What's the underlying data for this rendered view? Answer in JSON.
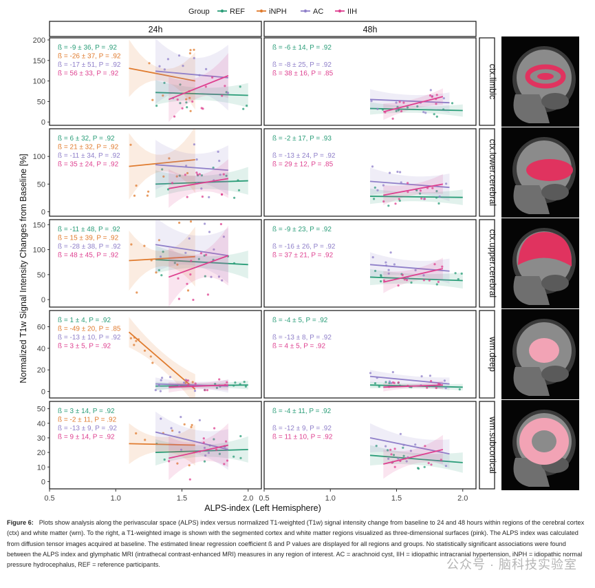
{
  "figure": {
    "legend_title": "Group",
    "x_axis_label": "ALPS-index (Left Hemisphere)",
    "y_axis_label": "Normalized T1w Signal Intensity Changes from Baseline [%]",
    "caption_label": "Figure 6:",
    "caption_text": "Plots show analysis along the perivascular space (ALPS) index versus normalized T1-weighted (T1w) signal intensity change from baseline to 24 and 48 hours within regions of the cerebral cortex (ctx) and white matter (wm). To the right, a T1-weighted image is shown with the segmented cortex and white matter regions visualized as three-dimensional surfaces (pink). The ALPS index was calculated from diffusion tensor images acquired at baseline. The estimated linear regression coefficient ß and P values are displayed for all regions and groups. No statistically significant associations were found between the ALPS index and glymphatic MRI (intrathecal contrast-enhanced MRI) measures in any region of interest. AC = arachnoid cyst, IIH = idiopathic intracranial hypertension, iNPH = idiopathic normal pressure hydrocephalus, REF = reference participants.",
    "watermark": "公众号 · 脑科技实验室",
    "colors": {
      "REF": "#2a9d78",
      "iNPH": "#e07b2e",
      "AC": "#8f7fc9",
      "IIH": "#de3f8f"
    }
  },
  "chart_data": {
    "type": "scatter",
    "groups": [
      "REF",
      "iNPH",
      "AC",
      "IIH"
    ],
    "columns": [
      "24h",
      "48h"
    ],
    "x_ticks": [
      "0.5",
      "1.0",
      "1.5",
      "2.0"
    ],
    "xlim": [
      0.5,
      2.1
    ],
    "rows": [
      {
        "region": "ctx.limbic",
        "ylim": [
          -8,
          205
        ],
        "y_ticks": [
          "0",
          "50",
          "100",
          "150",
          "200"
        ],
        "panels": [
          {
            "stats": [
              "ß = -9 ± 36, P = .92",
              "ß = -26 ± 37, P = .92",
              "ß = -17 ± 51, P = .92",
              "ß = 56 ± 33, P = .92"
            ],
            "lines": {
              "REF": {
                "x": [
                  1.3,
                  2.0
                ],
                "y": [
                  72,
                  65
                ],
                "band": [
                  15,
                  30
                ]
              },
              "iNPH": {
                "x": [
                  1.1,
                  1.6
                ],
                "y": [
                  131,
                  100
                ],
                "band": [
                  15,
                  70
                ]
              },
              "AC": {
                "x": [
                  1.3,
                  1.85
                ],
                "y": [
                  124,
                  108
                ],
                "band": [
                  40,
                  80
                ]
              },
              "IIH": {
                "x": [
                  1.4,
                  1.85
                ],
                "y": [
                  55,
                  113
                ],
                "band": [
                  25,
                  55
                ]
              }
            }
          },
          {
            "stats": [
              "ß = -6 ± 14, P = .92",
              "ß = -8 ± 25, P = .92",
              "ß = 38 ± 16, P = .85"
            ],
            "lines": {
              "REF": {
                "x": [
                  1.3,
                  2.0
                ],
                "y": [
                  33,
                  28
                ],
                "band": [
                  8,
                  15
                ]
              },
              "AC": {
                "x": [
                  1.3,
                  1.9
                ],
                "y": [
                  55,
                  47
                ],
                "band": [
                  15,
                  25
                ]
              },
              "IIH": {
                "x": [
                  1.4,
                  1.85
                ],
                "y": [
                  25,
                  62
                ],
                "band": [
                  12,
                  20
                ]
              }
            }
          }
        ]
      },
      {
        "region": "ctx.lower.cerebral",
        "ylim": [
          -8,
          150
        ],
        "y_ticks": [
          "0",
          "50",
          "100"
        ],
        "panels": [
          {
            "stats": [
              "ß = 6 ± 32, P = .92",
              "ß = 21 ± 32, P = .92",
              "ß = -11 ± 34, P = .92",
              "ß = 35 ± 24, P = .92"
            ],
            "lines": {
              "REF": {
                "x": [
                  1.3,
                  2.0
                ],
                "y": [
                  50,
                  56
                ],
                "band": [
                  12,
                  25
                ]
              },
              "iNPH": {
                "x": [
                  1.1,
                  1.6
                ],
                "y": [
                  82,
                  94
                ],
                "band": [
                  15,
                  60
                ]
              },
              "AC": {
                "x": [
                  1.3,
                  1.85
                ],
                "y": [
                  85,
                  75
                ],
                "band": [
                  25,
                  45
                ]
              },
              "IIH": {
                "x": [
                  1.4,
                  1.85
                ],
                "y": [
                  42,
                  60
                ],
                "band": [
                  15,
                  35
                ]
              }
            }
          },
          {
            "stats": [
              "ß = -2 ± 17, P = .93",
              "ß = -13 ± 24, P = .92",
              "ß = 29 ± 12, P = .85"
            ],
            "lines": {
              "REF": {
                "x": [
                  1.3,
                  2.0
                ],
                "y": [
                  28,
                  26
                ],
                "band": [
                  8,
                  14
                ]
              },
              "AC": {
                "x": [
                  1.3,
                  1.9
                ],
                "y": [
                  55,
                  44
                ],
                "band": [
                  15,
                  25
                ]
              },
              "IIH": {
                "x": [
                  1.4,
                  1.85
                ],
                "y": [
                  30,
                  50
                ],
                "band": [
                  10,
                  18
                ]
              }
            }
          }
        ]
      },
      {
        "region": "ctx.upper.cerebral",
        "ylim": [
          -15,
          160
        ],
        "y_ticks": [
          "0",
          "50",
          "100",
          "150"
        ],
        "panels": [
          {
            "stats": [
              "ß = -11 ± 48, P = .92",
              "ß = 15 ± 39, P = .92",
              "ß = -28 ± 38, P = .92",
              "ß = 48 ± 45, P = .92"
            ],
            "lines": {
              "REF": {
                "x": [
                  1.3,
                  2.0
                ],
                "y": [
                  80,
                  70
                ],
                "band": [
                  12,
                  28
                ]
              },
              "iNPH": {
                "x": [
                  1.1,
                  1.6
                ],
                "y": [
                  78,
                  86
                ],
                "band": [
                  15,
                  60
                ]
              },
              "AC": {
                "x": [
                  1.3,
                  1.85
                ],
                "y": [
                  110,
                  88
                ],
                "band": [
                  30,
                  55
                ]
              },
              "IIH": {
                "x": [
                  1.4,
                  1.85
                ],
                "y": [
                  45,
                  88
                ],
                "band": [
                  25,
                  60
                ]
              }
            }
          },
          {
            "stats": [
              "ß = -9 ± 23, P = .92",
              "ß = -16 ± 26, P = .92",
              "ß = 37 ± 21, P = .92"
            ],
            "lines": {
              "REF": {
                "x": [
                  1.3,
                  2.0
                ],
                "y": [
                  45,
                  38
                ],
                "band": [
                  10,
                  16
                ]
              },
              "AC": {
                "x": [
                  1.3,
                  1.9
                ],
                "y": [
                  70,
                  57
                ],
                "band": [
                  15,
                  25
                ]
              },
              "IIH": {
                "x": [
                  1.4,
                  1.85
                ],
                "y": [
                  35,
                  62
                ],
                "band": [
                  12,
                  22
                ]
              }
            }
          }
        ]
      },
      {
        "region": "wm.deep",
        "ylim": [
          -6,
          75
        ],
        "y_ticks": [
          "0",
          "20",
          "40",
          "60"
        ],
        "panels": [
          {
            "stats": [
              "ß = 1 ± 4, P = .92",
              "ß = -49 ± 20, P = .85",
              "ß = -13 ± 10, P = .92",
              "ß = 3 ± 5, P = .92"
            ],
            "lines": {
              "REF": {
                "x": [
                  1.3,
                  2.0
                ],
                "y": [
                  5,
                  6
                ],
                "band": [
                  2,
                  4
                ]
              },
              "iNPH": {
                "x": [
                  1.1,
                  1.6
                ],
                "y": [
                  55,
                  2
                ],
                "band": [
                  8,
                  14
                ]
              },
              "AC": {
                "x": [
                  1.3,
                  1.85
                ],
                "y": [
                  7,
                  5
                ],
                "band": [
                  3,
                  6
                ]
              },
              "IIH": {
                "x": [
                  1.4,
                  1.85
                ],
                "y": [
                  4,
                  6
                ],
                "band": [
                  3,
                  5
                ]
              }
            }
          },
          {
            "stats": [
              "ß = -4 ± 5, P = .92",
              "ß = -13 ± 8, P = .92",
              "ß = 4 ± 5, P = .92"
            ],
            "lines": {
              "REF": {
                "x": [
                  1.3,
                  2.0
                ],
                "y": [
                  6,
                  4
                ],
                "band": [
                  2,
                  3
                ]
              },
              "AC": {
                "x": [
                  1.3,
                  1.9
                ],
                "y": [
                  14,
                  7
                ],
                "band": [
                  4,
                  6
                ]
              },
              "IIH": {
                "x": [
                  1.4,
                  1.85
                ],
                "y": [
                  4,
                  6
                ],
                "band": [
                  2,
                  4
                ]
              }
            }
          }
        ]
      },
      {
        "region": "wm.subcortical",
        "ylim": [
          -5,
          55
        ],
        "y_ticks": [
          "0",
          "10",
          "20",
          "30",
          "40",
          "50"
        ],
        "panels": [
          {
            "stats": [
              "ß = 3 ± 14, P = .92",
              "ß = -2 ± 11, P = .92",
              "ß = -13 ± 9, P = .92",
              "ß = 9 ± 14, P = .92"
            ],
            "lines": {
              "REF": {
                "x": [
                  1.3,
                  2.0
                ],
                "y": [
                  20,
                  22
                ],
                "band": [
                  4,
                  9
                ]
              },
              "iNPH": {
                "x": [
                  1.1,
                  1.6
                ],
                "y": [
                  26,
                  25
                ],
                "band": [
                  5,
                  14
                ]
              },
              "AC": {
                "x": [
                  1.3,
                  1.85
                ],
                "y": [
                  34,
                  22
                ],
                "band": [
                  8,
                  14
                ]
              },
              "IIH": {
                "x": [
                  1.4,
                  1.85
                ],
                "y": [
                  16,
                  25
                ],
                "band": [
                  7,
                  15
                ]
              }
            }
          },
          {
            "stats": [
              "ß = -4 ± 11, P = .92",
              "ß = -12 ± 9, P = .92",
              "ß = 11 ± 10, P = .92"
            ],
            "lines": {
              "REF": {
                "x": [
                  1.3,
                  2.0
                ],
                "y": [
                  18,
                  13
                ],
                "band": [
                  4,
                  7
                ]
              },
              "AC": {
                "x": [
                  1.3,
                  1.9
                ],
                "y": [
                  30,
                  19
                ],
                "band": [
                  6,
                  10
                ]
              },
              "IIH": {
                "x": [
                  1.4,
                  1.85
                ],
                "y": [
                  12,
                  22
                ],
                "band": [
                  5,
                  10
                ]
              }
            }
          }
        ]
      }
    ]
  }
}
